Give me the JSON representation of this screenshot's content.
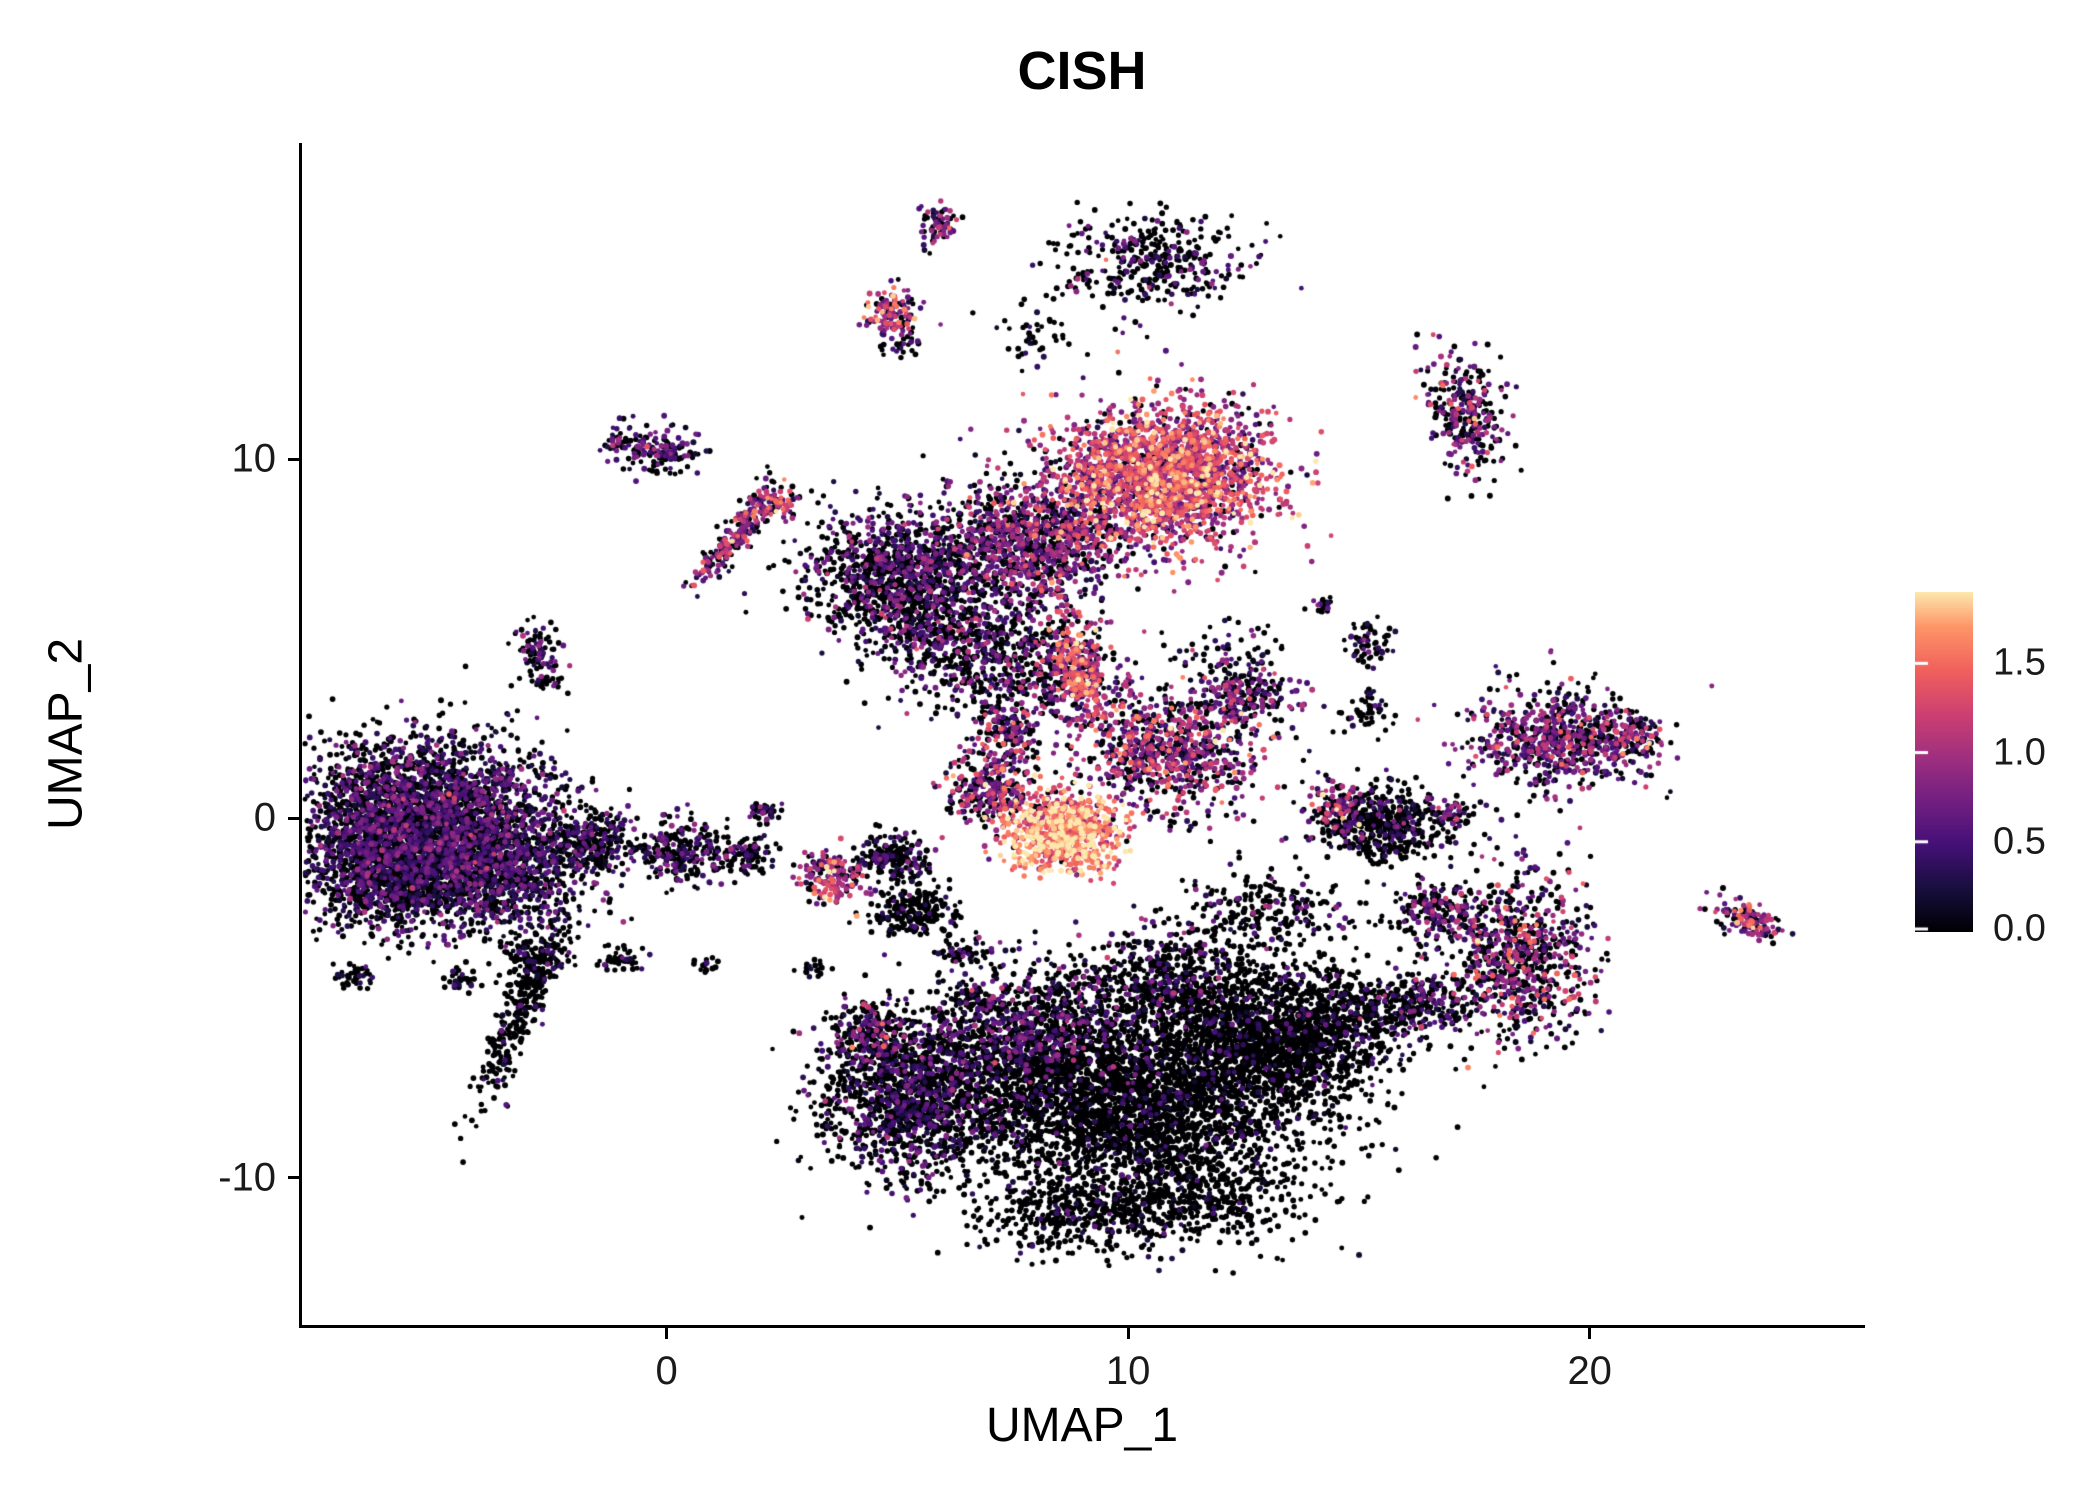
{
  "figure": {
    "title": "CISH"
  },
  "chart_data": {
    "type": "scatter",
    "subtype": "umap-feature-plot",
    "title": "CISH",
    "xlabel": "UMAP_1",
    "ylabel": "UMAP_2",
    "xlim": [
      -7.9,
      25.9
    ],
    "ylim": [
      -14.1,
      18.8
    ],
    "grid": false,
    "x_ticks": [
      {
        "value": 0,
        "label": "0"
      },
      {
        "value": 10,
        "label": "10"
      },
      {
        "value": 20,
        "label": "20"
      }
    ],
    "y_ticks": [
      {
        "value": -10,
        "label": "-10"
      },
      {
        "value": 0,
        "label": "0"
      },
      {
        "value": 10,
        "label": "10"
      }
    ],
    "legend": {
      "position": "right",
      "vmin": 0.0,
      "vmax": 1.9,
      "ticks": [
        {
          "value": 0.0,
          "label": "0.0"
        },
        {
          "value": 0.5,
          "label": "0.5"
        },
        {
          "value": 1.0,
          "label": "1.0"
        },
        {
          "value": 1.5,
          "label": "1.5"
        }
      ]
    },
    "colormap": {
      "name": "magma",
      "norm_max": 1.95,
      "stops": [
        [
          0.0,
          "#000004"
        ],
        [
          0.125,
          "#180f3e"
        ],
        [
          0.25,
          "#451077"
        ],
        [
          0.375,
          "#721f81"
        ],
        [
          0.5,
          "#9f2f7f"
        ],
        [
          0.625,
          "#cd4071"
        ],
        [
          0.75,
          "#f1605d"
        ],
        [
          0.875,
          "#fd9567"
        ],
        [
          1.0,
          "#fcfdbf"
        ]
      ]
    },
    "seed": 42,
    "point_radius": 2.6,
    "clusters_fields": [
      "cx",
      "cy",
      "sx",
      "sy",
      "n",
      "zero_frac",
      "expr_mean",
      "expr_sd",
      "rot_deg"
    ],
    "clusters": [
      [
        -5.4,
        0.2,
        1.35,
        1.05,
        2400,
        0.52,
        0.45,
        0.28,
        0
      ],
      [
        -4.1,
        -1.3,
        1.15,
        0.95,
        1700,
        0.55,
        0.42,
        0.26,
        0
      ],
      [
        -6.3,
        -1.6,
        0.75,
        0.75,
        700,
        0.6,
        0.4,
        0.25,
        0
      ],
      [
        -3.2,
        -5.4,
        0.22,
        1.3,
        280,
        0.88,
        0.35,
        0.2,
        -18
      ],
      [
        -2.9,
        -3.9,
        0.35,
        0.3,
        120,
        0.8,
        0.35,
        0.2,
        0
      ],
      [
        -6.8,
        -4.4,
        0.25,
        0.2,
        45,
        0.8,
        0.3,
        0.2,
        0
      ],
      [
        -4.5,
        -4.5,
        0.2,
        0.15,
        30,
        0.8,
        0.3,
        0.2,
        0
      ],
      [
        -1.6,
        -0.7,
        0.55,
        0.4,
        260,
        0.6,
        0.4,
        0.25,
        0
      ],
      [
        0.4,
        -0.9,
        0.5,
        0.42,
        260,
        0.65,
        0.42,
        0.26,
        0
      ],
      [
        1.7,
        -1.0,
        0.3,
        0.25,
        90,
        0.6,
        0.45,
        0.3,
        0
      ],
      [
        2.1,
        0.2,
        0.2,
        0.15,
        40,
        0.6,
        0.4,
        0.25,
        0
      ],
      [
        -0.2,
        10.3,
        0.45,
        0.33,
        150,
        0.45,
        0.5,
        0.3,
        0
      ],
      [
        -1.1,
        10.5,
        0.15,
        0.12,
        25,
        0.5,
        0.5,
        0.3,
        0
      ],
      [
        -2.9,
        4.7,
        0.3,
        0.35,
        80,
        0.45,
        0.5,
        0.3,
        0
      ],
      [
        -2.6,
        3.8,
        0.2,
        0.15,
        30,
        0.6,
        0.4,
        0.3,
        0
      ],
      [
        1.5,
        7.9,
        0.18,
        0.85,
        220,
        0.3,
        0.8,
        0.45,
        -30
      ],
      [
        2.35,
        8.8,
        0.25,
        0.2,
        70,
        0.2,
        1.1,
        0.4,
        0
      ],
      [
        5.9,
        16.5,
        0.22,
        0.3,
        70,
        0.35,
        0.7,
        0.4,
        0
      ],
      [
        4.9,
        14.1,
        0.3,
        0.38,
        130,
        0.25,
        1.0,
        0.45,
        0
      ],
      [
        5.1,
        13.2,
        0.2,
        0.15,
        25,
        0.8,
        0.4,
        0.2,
        0
      ],
      [
        10.5,
        15.5,
        1.0,
        0.65,
        380,
        0.72,
        0.5,
        0.3,
        0
      ],
      [
        8.0,
        13.4,
        0.5,
        0.4,
        40,
        0.85,
        0.4,
        0.25,
        0
      ],
      [
        17.3,
        11.3,
        0.42,
        0.85,
        300,
        0.4,
        0.7,
        0.4,
        12
      ],
      [
        10.8,
        9.6,
        1.15,
        0.95,
        2300,
        0.1,
        1.1,
        0.4,
        0
      ],
      [
        8.0,
        7.7,
        1.0,
        0.9,
        1100,
        0.4,
        0.65,
        0.35,
        0
      ],
      [
        5.0,
        6.8,
        1.0,
        0.9,
        1100,
        0.55,
        0.5,
        0.3,
        0
      ],
      [
        6.4,
        4.9,
        0.9,
        0.9,
        600,
        0.6,
        0.45,
        0.3,
        0
      ],
      [
        8.2,
        4.2,
        0.9,
        0.8,
        350,
        0.5,
        0.6,
        0.4,
        0
      ],
      [
        8.9,
        4.2,
        0.28,
        0.75,
        260,
        0.15,
        1.15,
        0.4,
        8
      ],
      [
        10.8,
        1.9,
        1.0,
        0.85,
        850,
        0.3,
        0.8,
        0.45,
        0
      ],
      [
        12.6,
        3.4,
        0.5,
        0.4,
        200,
        0.45,
        0.6,
        0.35,
        0
      ],
      [
        8.6,
        -0.4,
        0.62,
        0.55,
        750,
        0.04,
        1.55,
        0.35,
        0
      ],
      [
        7.0,
        0.8,
        0.5,
        0.45,
        260,
        0.3,
        0.85,
        0.45,
        0
      ],
      [
        7.4,
        2.3,
        0.35,
        0.5,
        150,
        0.35,
        0.8,
        0.4,
        0
      ],
      [
        3.6,
        -1.7,
        0.35,
        0.4,
        180,
        0.2,
        0.95,
        0.45,
        0
      ],
      [
        4.9,
        -1.1,
        0.4,
        0.3,
        200,
        0.75,
        0.35,
        0.2,
        0
      ],
      [
        5.4,
        -2.6,
        0.45,
        0.35,
        240,
        0.85,
        0.3,
        0.2,
        0
      ],
      [
        6.4,
        -3.7,
        0.25,
        0.2,
        60,
        0.85,
        0.3,
        0.2,
        0
      ],
      [
        6.7,
        -5.0,
        0.2,
        0.18,
        40,
        0.85,
        0.3,
        0.2,
        0
      ],
      [
        15.5,
        -0.2,
        0.72,
        0.6,
        500,
        0.78,
        0.4,
        0.25,
        0
      ],
      [
        14.6,
        0.3,
        0.3,
        0.35,
        120,
        0.35,
        0.8,
        0.4,
        0
      ],
      [
        19.3,
        2.2,
        0.95,
        0.68,
        720,
        0.38,
        0.65,
        0.35,
        0
      ],
      [
        20.9,
        2.3,
        0.3,
        0.3,
        90,
        0.25,
        0.9,
        0.4,
        0
      ],
      [
        18.4,
        -3.9,
        0.8,
        1.1,
        800,
        0.45,
        0.7,
        0.45,
        0
      ],
      [
        16.7,
        -2.6,
        0.5,
        0.4,
        200,
        0.55,
        0.55,
        0.35,
        0
      ],
      [
        16.2,
        -5.2,
        0.6,
        0.5,
        250,
        0.7,
        0.45,
        0.3,
        0
      ],
      [
        23.4,
        -2.8,
        0.42,
        0.22,
        130,
        0.25,
        0.9,
        0.45,
        -35
      ],
      [
        15.2,
        4.9,
        0.25,
        0.3,
        70,
        0.75,
        0.4,
        0.25,
        0
      ],
      [
        14.2,
        6.0,
        0.15,
        0.12,
        20,
        0.8,
        0.4,
        0.2,
        0
      ],
      [
        17.0,
        0.1,
        0.3,
        0.25,
        60,
        0.55,
        0.6,
        0.35,
        0
      ],
      [
        12.2,
        4.5,
        0.5,
        0.5,
        70,
        0.7,
        0.5,
        0.3,
        0
      ],
      [
        15.2,
        2.9,
        0.3,
        0.3,
        50,
        0.8,
        0.4,
        0.25,
        0
      ],
      [
        10.0,
        -7.9,
        2.0,
        1.3,
        3300,
        0.9,
        0.3,
        0.2,
        0
      ],
      [
        13.0,
        -6.2,
        1.2,
        0.95,
        1400,
        0.92,
        0.28,
        0.18,
        0
      ],
      [
        5.3,
        -7.8,
        1.0,
        1.0,
        1300,
        0.68,
        0.4,
        0.25,
        0
      ],
      [
        7.8,
        -6.0,
        1.2,
        0.9,
        1000,
        0.6,
        0.45,
        0.3,
        0
      ],
      [
        11.0,
        -4.6,
        1.2,
        0.7,
        600,
        0.75,
        0.4,
        0.3,
        0
      ],
      [
        4.4,
        -6.0,
        0.5,
        0.5,
        250,
        0.55,
        0.55,
        0.35,
        0
      ],
      [
        11.3,
        -10.6,
        1.2,
        0.65,
        450,
        0.93,
        0.25,
        0.15,
        0
      ],
      [
        8.6,
        -11.0,
        1.0,
        0.55,
        320,
        0.9,
        0.3,
        0.18,
        0
      ],
      [
        14.6,
        -5.6,
        0.7,
        0.7,
        350,
        0.85,
        0.35,
        0.22,
        0
      ],
      [
        13.0,
        -2.6,
        1.0,
        0.6,
        250,
        0.78,
        0.45,
        0.3,
        0
      ],
      [
        -0.9,
        -3.9,
        0.25,
        0.2,
        45,
        0.8,
        0.35,
        0.2,
        0
      ],
      [
        3.2,
        -4.2,
        0.15,
        0.12,
        20,
        0.8,
        0.3,
        0.2,
        0
      ],
      [
        0.9,
        -4.1,
        0.12,
        0.1,
        15,
        0.8,
        0.3,
        0.2,
        0
      ]
    ]
  }
}
